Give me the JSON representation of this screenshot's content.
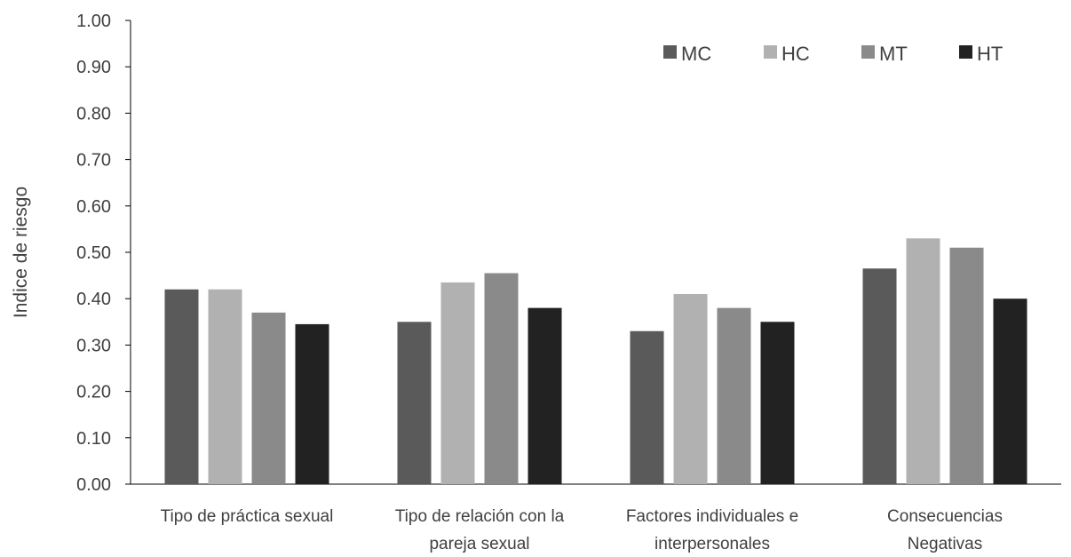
{
  "chart_data": {
    "type": "bar",
    "title": "",
    "xlabel": "",
    "ylabel": "Indice de riesgo",
    "ylim": [
      0,
      1.0
    ],
    "yticks": [
      "0.00",
      "0.10",
      "0.20",
      "0.30",
      "0.40",
      "0.50",
      "0.60",
      "0.70",
      "0.80",
      "0.90",
      "1.00"
    ],
    "grid": false,
    "legend_position": "top-right",
    "categories": [
      [
        "Tipo de práctica sexual"
      ],
      [
        "Tipo de relación con la",
        "pareja sexual"
      ],
      [
        "Factores individuales e",
        "interpersonales"
      ],
      [
        "Consecuencias",
        "Negativas"
      ]
    ],
    "series": [
      {
        "name": "MC",
        "color": "#5a5a5a",
        "values": [
          0.42,
          0.35,
          0.33,
          0.465
        ]
      },
      {
        "name": "HC",
        "color": "#b1b1b1",
        "values": [
          0.42,
          0.435,
          0.41,
          0.53
        ]
      },
      {
        "name": "MT",
        "color": "#8a8a8a",
        "values": [
          0.37,
          0.455,
          0.38,
          0.51
        ]
      },
      {
        "name": "HT",
        "color": "#222222",
        "values": [
          0.345,
          0.38,
          0.35,
          0.4
        ]
      }
    ]
  }
}
